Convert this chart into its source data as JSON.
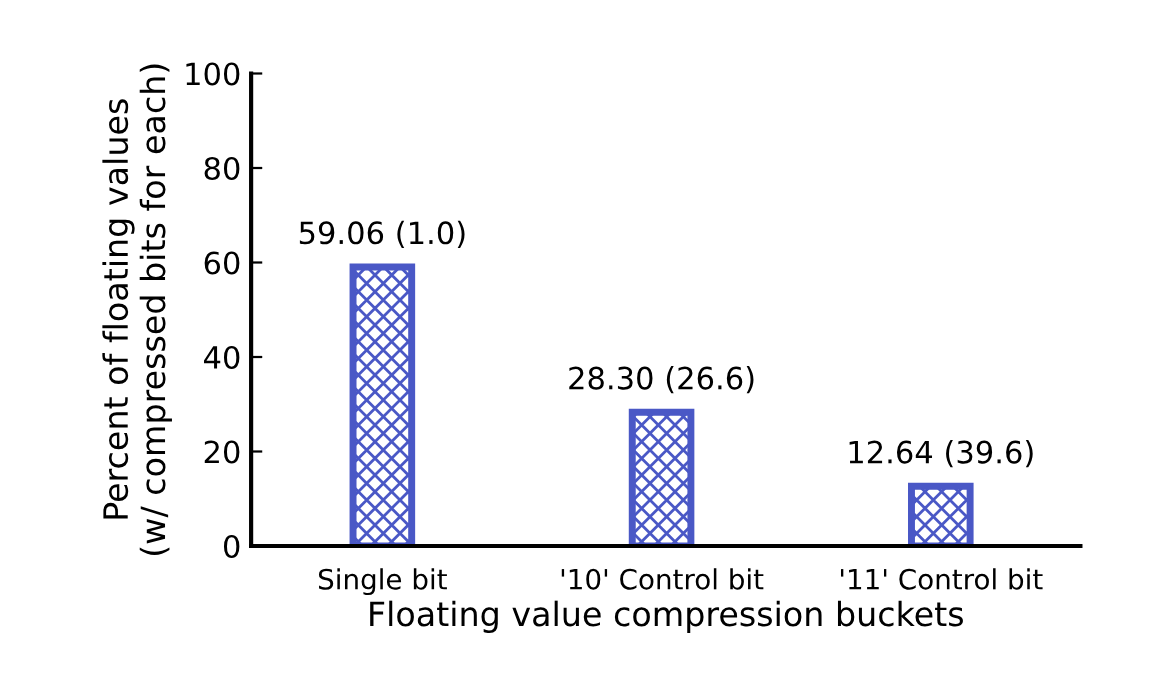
{
  "chart_data": {
    "type": "bar",
    "xlabel": "Floating value compression buckets",
    "ylabel": "Percent of floating values\n(w/ compressed bits for each)",
    "categories": [
      "Single bit",
      "'10' Control bit",
      "'11' Control bit"
    ],
    "values": [
      59.06,
      28.3,
      12.64
    ],
    "value_labels": [
      "59.06 (1.0)",
      "28.30 (26.6)",
      "12.64 (39.6)"
    ],
    "color": "#4a58c6",
    "ylim": [
      0,
      100
    ],
    "yticks": [
      0,
      20,
      40,
      60,
      80,
      100
    ],
    "grid": false,
    "legend": false
  }
}
